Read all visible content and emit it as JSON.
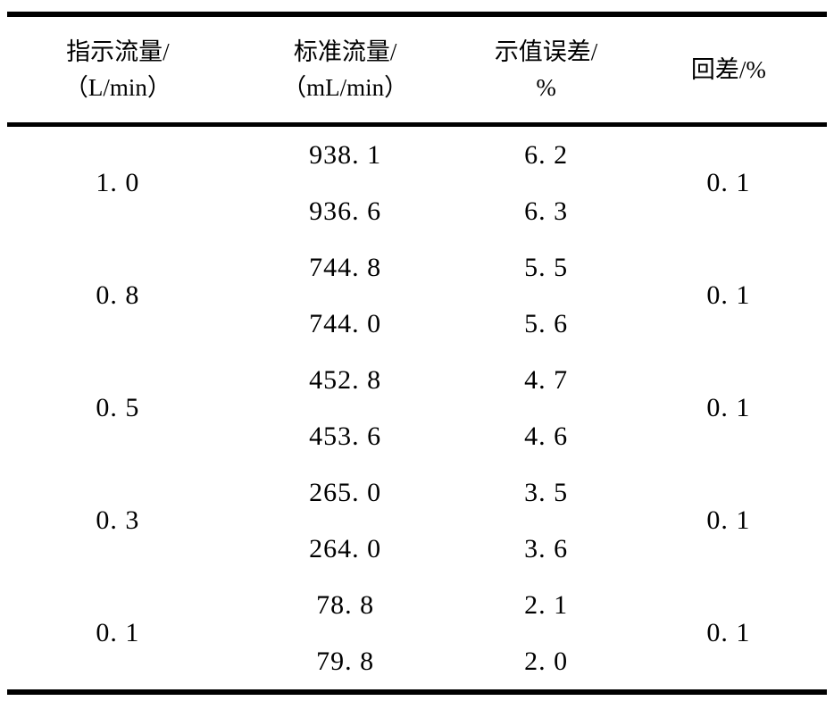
{
  "table": {
    "headers": [
      {
        "line1": "指示流量/",
        "line2": "（L/min）"
      },
      {
        "line1": "标准流量/",
        "line2": "（mL/min）"
      },
      {
        "line1": "示值误差/",
        "line2": "%"
      },
      {
        "line1": "回差/%",
        "line2": ""
      }
    ],
    "groups": [
      {
        "flow": "1. 0",
        "std1": "938. 1",
        "err1": "6. 2",
        "std2": "936. 6",
        "err2": "6. 3",
        "hysteresis": "0. 1"
      },
      {
        "flow": "0. 8",
        "std1": "744. 8",
        "err1": "5. 5",
        "std2": "744. 0",
        "err2": "5. 6",
        "hysteresis": "0. 1"
      },
      {
        "flow": "0. 5",
        "std1": "452. 8",
        "err1": "4. 7",
        "std2": "453. 6",
        "err2": "4. 6",
        "hysteresis": "0. 1"
      },
      {
        "flow": "0. 3",
        "std1": "265. 0",
        "err1": "3. 5",
        "std2": "264. 0",
        "err2": "3. 6",
        "hysteresis": "0. 1"
      },
      {
        "flow": "0. 1",
        "std1": "78. 8",
        "err1": "2. 1",
        "std2": "79. 8",
        "err2": "2. 0",
        "hysteresis": "0. 1"
      }
    ]
  },
  "chart_data": {
    "type": "table",
    "title": "",
    "columns": [
      "指示流量/（L/min）",
      "标准流量/（mL/min）",
      "示值误差/%",
      "回差/%"
    ],
    "rows": [
      [
        "1.0",
        "938.1",
        "6.2",
        "0.1"
      ],
      [
        "1.0",
        "936.6",
        "6.3",
        "0.1"
      ],
      [
        "0.8",
        "744.8",
        "5.5",
        "0.1"
      ],
      [
        "0.8",
        "744.0",
        "5.6",
        "0.1"
      ],
      [
        "0.5",
        "452.8",
        "4.7",
        "0.1"
      ],
      [
        "0.5",
        "453.6",
        "4.6",
        "0.1"
      ],
      [
        "0.3",
        "265.0",
        "3.5",
        "0.1"
      ],
      [
        "0.3",
        "264.0",
        "3.6",
        "0.1"
      ],
      [
        "0.1",
        "78.8",
        "2.1",
        "0.1"
      ],
      [
        "0.1",
        "79.8",
        "2.0",
        "0.1"
      ]
    ]
  }
}
